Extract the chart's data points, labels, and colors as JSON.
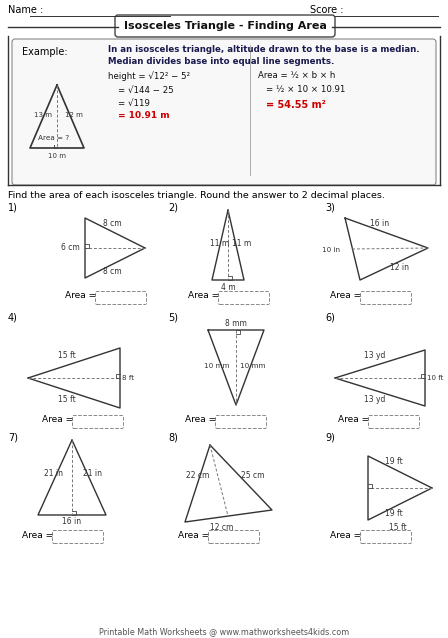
{
  "title": "Isosceles Triangle - Finding Area",
  "name_label": "Name :",
  "score_label": "Score :",
  "theorem_line1": "In an isosceles triangle, altitude drawn to the base is a median.",
  "theorem_line2": "Median divides base into equal line segments.",
  "instruction": "Find the area of each isosceles triangle. Round the answer to 2 decimal places.",
  "footer": "Printable Math Worksheets @ www.mathworksheets4kids.com",
  "bg_color": "#ffffff",
  "red_color": "#cc0000",
  "dark": "#222222",
  "gray": "#555555",
  "lgray": "#aaaaaa"
}
